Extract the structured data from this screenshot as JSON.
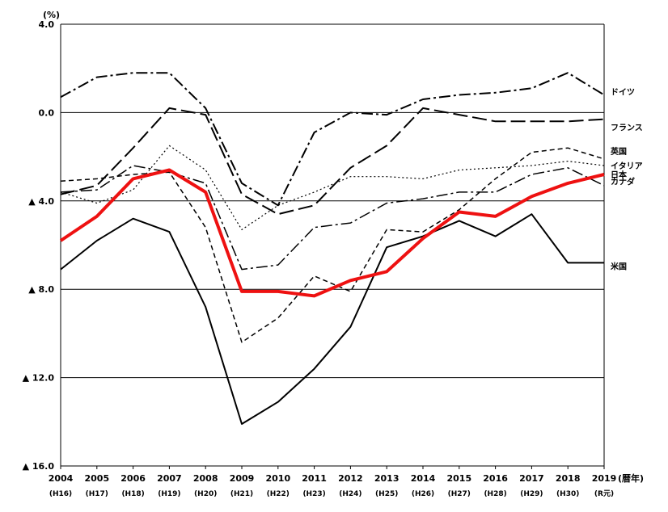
{
  "chart_data": {
    "type": "line",
    "unit_label": "(%)",
    "x_suffix": "(暦年)",
    "x": [
      "2004",
      "2005",
      "2006",
      "2007",
      "2008",
      "2009",
      "2010",
      "2011",
      "2012",
      "2013",
      "2014",
      "2015",
      "2016",
      "2017",
      "2018",
      "2019"
    ],
    "x_sub": [
      "(H16)",
      "(H17)",
      "(H18)",
      "(H19)",
      "(H20)",
      "(H21)",
      "(H22)",
      "(H23)",
      "(H24)",
      "(H25)",
      "(H26)",
      "(H27)",
      "(H28)",
      "(H29)",
      "(H30)",
      "(R元)"
    ],
    "y_ticks": [
      {
        "value": 4.0,
        "label": "4.0"
      },
      {
        "value": 0.0,
        "label": "0.0"
      },
      {
        "value": -4.0,
        "label": "▲ 4.0"
      },
      {
        "value": -8.0,
        "label": "▲ 8.0"
      },
      {
        "value": -12.0,
        "label": "▲ 12.0"
      },
      {
        "value": -16.0,
        "label": "▲ 16.0"
      }
    ],
    "ylim": [
      -16,
      4
    ],
    "grid": "horizontal",
    "series": [
      {
        "name": "ドイツ",
        "color": "#000000",
        "dash": "14,4,3,4",
        "width": 2,
        "values": [
          0.7,
          1.6,
          1.8,
          1.8,
          0.2,
          -3.2,
          -4.2,
          -0.9,
          0.0,
          -0.1,
          0.6,
          0.8,
          0.9,
          1.1,
          1.8,
          0.8
        ]
      },
      {
        "name": "カナダ",
        "color": "#000000",
        "dash": "14,4,3,4",
        "width": 1.5,
        "values": [
          -3.6,
          -3.5,
          -2.4,
          -2.7,
          -3.2,
          -7.1,
          -6.9,
          -5.2,
          -5.0,
          -4.1,
          -3.9,
          -3.6,
          -3.6,
          -2.8,
          -2.5,
          -3.3
        ]
      },
      {
        "name": "英国",
        "color": "#000000",
        "dash": "6,4",
        "width": 1.5,
        "values": [
          -3.1,
          -3.0,
          -2.8,
          -2.7,
          -5.2,
          -10.4,
          -9.3,
          -7.4,
          -8.1,
          -5.3,
          -5.4,
          -4.4,
          -3.0,
          -1.8,
          -1.6,
          -2.1
        ]
      },
      {
        "name": "イタリア",
        "color": "#000000",
        "dash": "2,3",
        "width": 1.2,
        "values": [
          -3.6,
          -4.1,
          -3.5,
          -1.5,
          -2.6,
          -5.3,
          -4.2,
          -3.6,
          -2.9,
          -2.9,
          -3.0,
          -2.6,
          -2.5,
          -2.4,
          -2.2,
          -2.4
        ]
      },
      {
        "name": "日本",
        "color": "#ee1111",
        "dash": "",
        "width": 4,
        "values": [
          -5.8,
          -4.7,
          -3.0,
          -2.6,
          -3.6,
          -8.1,
          -8.1,
          -8.3,
          -7.6,
          -7.2,
          -5.7,
          -4.5,
          -4.7,
          -3.8,
          -3.2,
          -2.8
        ]
      },
      {
        "name": "フランス",
        "color": "#000000",
        "dash": "18,6",
        "width": 2,
        "values": [
          -3.7,
          -3.3,
          -1.6,
          0.2,
          -0.1,
          -3.7,
          -4.6,
          -4.2,
          -2.5,
          -1.5,
          0.2,
          -0.1,
          -0.4,
          -0.4,
          -0.4,
          -0.3
        ]
      },
      {
        "name": "米国",
        "color": "#000000",
        "dash": "",
        "width": 2,
        "values": [
          -7.1,
          -5.8,
          -4.8,
          -5.4,
          -8.8,
          -14.1,
          -13.1,
          -11.6,
          -9.7,
          -6.1,
          -5.6,
          -4.9,
          -5.6,
          -4.6,
          -6.8,
          -6.8
        ]
      }
    ],
    "labels": [
      {
        "text": "ドイツ",
        "color": "#000000"
      },
      {
        "text": "カナダ",
        "color": "#000000"
      },
      {
        "text": "英国",
        "color": "#000000"
      },
      {
        "text": "イタリア",
        "color": "#000000"
      },
      {
        "text": "日本",
        "color": "#ee1111"
      },
      {
        "text": "フランス",
        "color": "#000000"
      },
      {
        "text": "米国",
        "color": "#000000"
      }
    ]
  }
}
